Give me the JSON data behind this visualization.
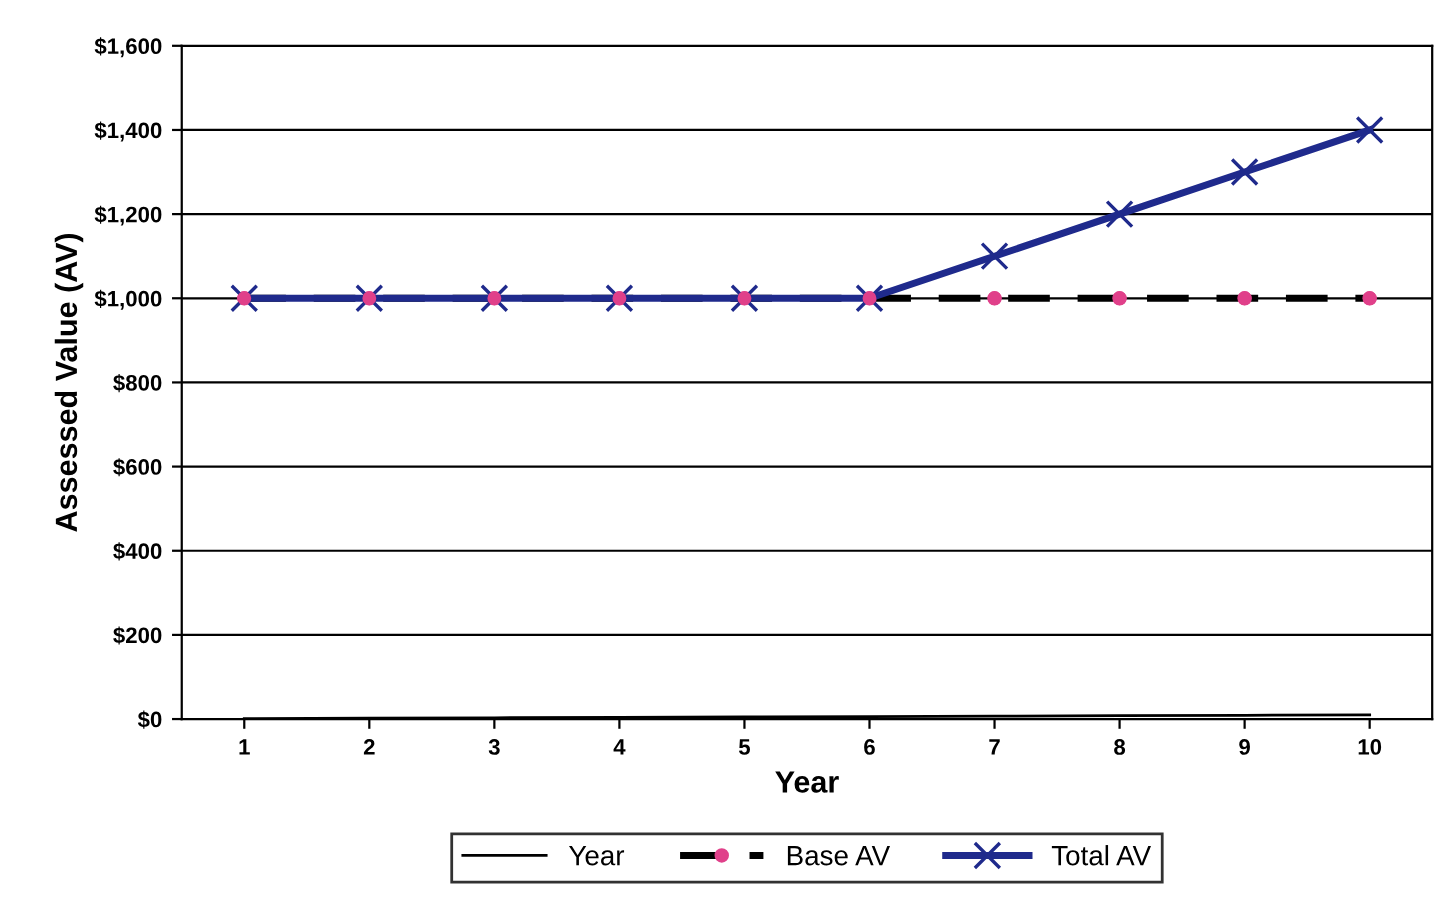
{
  "chart_data": {
    "type": "line",
    "xlabel": "Year",
    "ylabel": "Assessed Value (AV)",
    "categories": [
      "1",
      "2",
      "3",
      "4",
      "5",
      "6",
      "7",
      "8",
      "9",
      "10"
    ],
    "series": [
      {
        "name": "Year",
        "color": "#000000",
        "marker": "none",
        "line_style": "solid",
        "values": [
          1,
          2,
          3,
          4,
          5,
          6,
          7,
          8,
          9,
          10
        ]
      },
      {
        "name": "Base AV",
        "color": "#000000",
        "marker": "circle",
        "colors": [
          "#e0408a",
          "#e0408a",
          "#e0408a",
          "#e0408a",
          "#e0408a",
          "#e0408a",
          "#e0408a",
          "#e0408a",
          "#e0408a",
          "#e0408a"
        ],
        "line_style": "dashed",
        "values": [
          1000,
          1000,
          1000,
          1000,
          1000,
          1000,
          1000,
          1000,
          1000,
          1000
        ]
      },
      {
        "name": "Total AV",
        "color": "#1f2a8c",
        "marker": "cross",
        "line_style": "solid",
        "values": [
          1000,
          1000,
          1000,
          1000,
          1000,
          1000,
          1100,
          1200,
          1300,
          1400
        ]
      }
    ],
    "ylim": [
      0,
      1600
    ],
    "yticks": [
      {
        "value": 0,
        "label": "$0"
      },
      {
        "value": 200,
        "label": "$200"
      },
      {
        "value": 400,
        "label": "$400"
      },
      {
        "value": 600,
        "label": "$600"
      },
      {
        "value": 800,
        "label": "$800"
      },
      {
        "value": 1000,
        "label": "$1,000"
      },
      {
        "value": 1200,
        "label": "$1,200"
      },
      {
        "value": 1400,
        "label": "$1,400"
      },
      {
        "value": 1600,
        "label": "$1,600"
      }
    ],
    "grid": "y",
    "legend": "bottom"
  }
}
